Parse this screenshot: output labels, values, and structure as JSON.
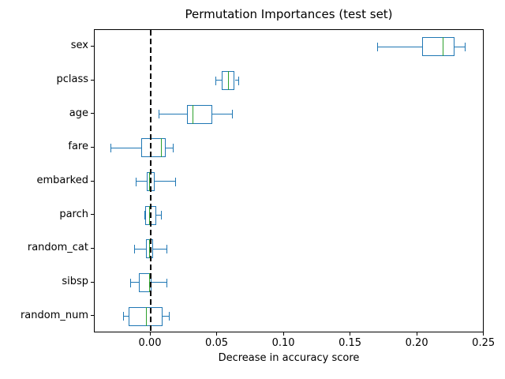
{
  "figure": {
    "title": "Permutation Importances (test set)",
    "xlabel": "Decrease in accuracy score"
  },
  "chart_data": {
    "type": "boxplot",
    "orientation": "horizontal",
    "title": "Permutation Importances (test set)",
    "xlabel": "Decrease in accuracy score",
    "ylabel": "",
    "xlim": [
      -0.042,
      0.2502
    ],
    "xticks": [
      "0.00",
      "0.05",
      "0.10",
      "0.15",
      "0.20",
      "0.25"
    ],
    "xtick_values": [
      0.0,
      0.05,
      0.1,
      0.15,
      0.2,
      0.25
    ],
    "grid": false,
    "legend": "none",
    "reference_line": {
      "x": 0.0,
      "style": "dashed",
      "color": "#000000"
    },
    "colors": {
      "box": "#1f77b4",
      "whisker": "#1f77b4",
      "cap": "#1f77b4",
      "median": "#2ca02c"
    },
    "series": [
      {
        "label": "sex",
        "whisker_lo": 0.17,
        "q1": 0.2035,
        "median": 0.2195,
        "q3": 0.2275,
        "whisker_hi": 0.236
      },
      {
        "label": "pclass",
        "whisker_lo": 0.049,
        "q1": 0.053,
        "median": 0.0585,
        "q3": 0.063,
        "whisker_hi": 0.066
      },
      {
        "label": "age",
        "whisker_lo": 0.0065,
        "q1": 0.0275,
        "median": 0.0315,
        "q3": 0.046,
        "whisker_hi": 0.0615
      },
      {
        "label": "fare",
        "whisker_lo": -0.03,
        "q1": -0.007,
        "median": 0.008,
        "q3": 0.0115,
        "whisker_hi": 0.017
      },
      {
        "label": "embarked",
        "whisker_lo": -0.011,
        "q1": -0.003,
        "median": -0.001,
        "q3": 0.003,
        "whisker_hi": 0.019
      },
      {
        "label": "parch",
        "whisker_lo": -0.004,
        "q1": -0.004,
        "median": -0.001,
        "q3": 0.004,
        "whisker_hi": 0.008
      },
      {
        "label": "random_cat",
        "whisker_lo": -0.012,
        "q1": -0.0035,
        "median": -0.001,
        "q3": 0.002,
        "whisker_hi": 0.012
      },
      {
        "label": "sibsp",
        "whisker_lo": -0.015,
        "q1": -0.009,
        "median": -0.001,
        "q3": 0.0005,
        "whisker_hi": 0.012
      },
      {
        "label": "random_num",
        "whisker_lo": -0.02,
        "q1": -0.0165,
        "median": -0.003,
        "q3": 0.009,
        "whisker_hi": 0.014
      }
    ]
  }
}
